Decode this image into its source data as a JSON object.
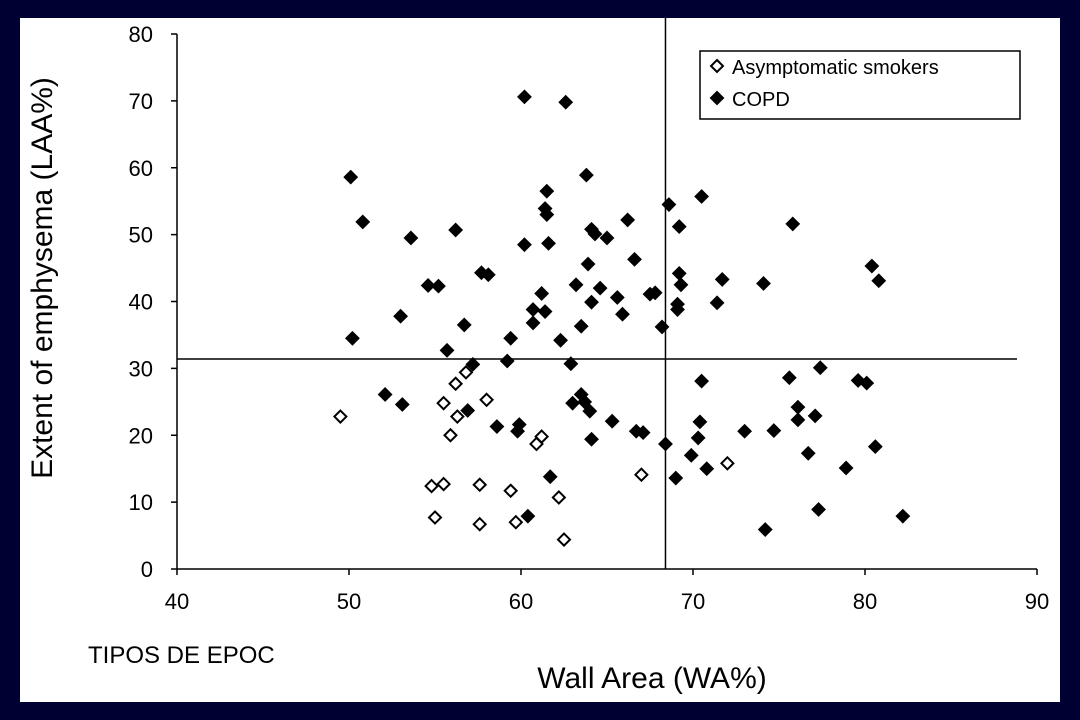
{
  "chart_data": {
    "type": "scatter",
    "title": "",
    "xlabel": "Wall Area (WA%)",
    "ylabel": "Extent of emphysema (LAA%)",
    "xlim": [
      40,
      90
    ],
    "ylim": [
      0,
      80
    ],
    "xticks": [
      "40",
      "50",
      "60",
      "70",
      "80",
      "90"
    ],
    "yticks": [
      "0",
      "10",
      "20",
      "30",
      "40",
      "50",
      "60",
      "70",
      "80"
    ],
    "reference_lines": {
      "vertical_x": 68.4,
      "horizontal_y": 31.4
    },
    "legend": {
      "position": "top-right"
    },
    "series": [
      {
        "name": "Asymptomatic smokers",
        "marker": "open-diamond",
        "color": "#000000",
        "points": [
          [
            49.5,
            22.8
          ],
          [
            54.8,
            12.4
          ],
          [
            55.0,
            7.7
          ],
          [
            55.5,
            12.7
          ],
          [
            55.5,
            24.8
          ],
          [
            55.9,
            20.0
          ],
          [
            56.2,
            27.7
          ],
          [
            56.3,
            22.8
          ],
          [
            56.8,
            29.4
          ],
          [
            57.6,
            12.6
          ],
          [
            57.6,
            6.7
          ],
          [
            58.0,
            25.3
          ],
          [
            59.4,
            11.7
          ],
          [
            59.7,
            7.0
          ],
          [
            60.9,
            18.7
          ],
          [
            61.2,
            19.8
          ],
          [
            62.2,
            10.7
          ],
          [
            62.5,
            4.4
          ],
          [
            67.0,
            14.1
          ],
          [
            72.0,
            15.8
          ]
        ]
      },
      {
        "name": "COPD",
        "marker": "filled-diamond",
        "color": "#000000",
        "points": [
          [
            50.1,
            58.6
          ],
          [
            50.2,
            34.5
          ],
          [
            50.8,
            51.9
          ],
          [
            52.1,
            26.1
          ],
          [
            53.0,
            37.8
          ],
          [
            53.1,
            24.6
          ],
          [
            53.6,
            49.5
          ],
          [
            54.6,
            42.4
          ],
          [
            55.2,
            42.3
          ],
          [
            55.7,
            32.7
          ],
          [
            56.2,
            50.7
          ],
          [
            56.7,
            36.5
          ],
          [
            56.9,
            23.7
          ],
          [
            57.2,
            30.6
          ],
          [
            57.7,
            44.3
          ],
          [
            58.1,
            44.0
          ],
          [
            58.6,
            21.3
          ],
          [
            59.2,
            31.1
          ],
          [
            59.4,
            34.5
          ],
          [
            59.8,
            20.6
          ],
          [
            59.9,
            21.6
          ],
          [
            60.2,
            48.5
          ],
          [
            60.2,
            70.6
          ],
          [
            60.4,
            7.9
          ],
          [
            60.7,
            38.8
          ],
          [
            60.7,
            36.8
          ],
          [
            61.2,
            41.2
          ],
          [
            61.4,
            38.5
          ],
          [
            61.4,
            53.9
          ],
          [
            61.5,
            53.0
          ],
          [
            61.5,
            56.5
          ],
          [
            61.6,
            48.7
          ],
          [
            61.7,
            13.8
          ],
          [
            62.3,
            34.2
          ],
          [
            62.6,
            69.8
          ],
          [
            62.9,
            30.7
          ],
          [
            63.0,
            24.8
          ],
          [
            63.2,
            42.5
          ],
          [
            63.5,
            36.3
          ],
          [
            63.5,
            26.1
          ],
          [
            63.7,
            25.0
          ],
          [
            63.8,
            58.9
          ],
          [
            63.9,
            45.6
          ],
          [
            64.0,
            23.6
          ],
          [
            64.1,
            19.4
          ],
          [
            64.1,
            39.9
          ],
          [
            64.1,
            50.8
          ],
          [
            64.3,
            50.1
          ],
          [
            64.6,
            42.0
          ],
          [
            65.0,
            49.5
          ],
          [
            65.3,
            22.1
          ],
          [
            65.6,
            40.6
          ],
          [
            65.9,
            38.1
          ],
          [
            66.2,
            52.2
          ],
          [
            66.6,
            46.3
          ],
          [
            66.7,
            20.6
          ],
          [
            67.1,
            20.4
          ],
          [
            67.5,
            41.1
          ],
          [
            67.8,
            41.3
          ],
          [
            68.2,
            36.2
          ],
          [
            68.4,
            18.7
          ],
          [
            68.6,
            54.5
          ],
          [
            69.0,
            13.6
          ],
          [
            69.1,
            38.8
          ],
          [
            69.1,
            39.6
          ],
          [
            69.2,
            44.2
          ],
          [
            69.2,
            51.2
          ],
          [
            69.3,
            42.5
          ],
          [
            69.9,
            17.0
          ],
          [
            70.3,
            19.6
          ],
          [
            70.4,
            22.0
          ],
          [
            70.5,
            55.7
          ],
          [
            70.5,
            28.1
          ],
          [
            70.8,
            15.0
          ],
          [
            71.4,
            39.8
          ],
          [
            71.7,
            43.3
          ],
          [
            73.0,
            20.6
          ],
          [
            74.1,
            42.7
          ],
          [
            74.2,
            5.9
          ],
          [
            74.7,
            20.7
          ],
          [
            75.6,
            28.6
          ],
          [
            75.8,
            51.6
          ],
          [
            76.1,
            24.2
          ],
          [
            76.1,
            22.3
          ],
          [
            76.7,
            17.3
          ],
          [
            77.1,
            22.9
          ],
          [
            77.3,
            8.9
          ],
          [
            77.4,
            30.1
          ],
          [
            78.9,
            15.1
          ],
          [
            79.6,
            28.2
          ],
          [
            80.1,
            27.8
          ],
          [
            80.4,
            45.3
          ],
          [
            80.6,
            18.3
          ],
          [
            80.8,
            43.1
          ],
          [
            82.2,
            7.9
          ]
        ]
      }
    ]
  },
  "annotation": "TIPOS DE EPOC"
}
